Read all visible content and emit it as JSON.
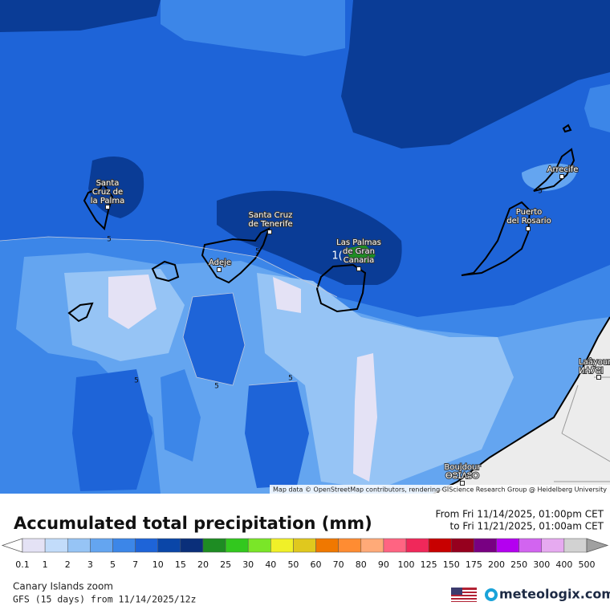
{
  "map": {
    "places": [
      {
        "lines": [
          "Santa",
          "Cruz de",
          "la Palma"
        ]
      },
      {
        "lines": [
          "Santa Cruz",
          "de Tenerife"
        ]
      },
      {
        "lines": [
          "Adeje"
        ]
      },
      {
        "lines": [
          "Las Palmas",
          "de Gran",
          "Canaria"
        ]
      },
      {
        "lines": [
          "Puerto",
          "del Rosario"
        ]
      },
      {
        "lines": [
          "Arrecife"
        ]
      },
      {
        "lines": [
          "Laâyoune",
          "ⵍⵄⵢⵓⵏ"
        ]
      },
      {
        "lines": [
          "Boujdour",
          "ⴱⵓⵊⴷⵓⵔ"
        ]
      }
    ],
    "contour_labels": [
      "5",
      "5",
      "5",
      "5",
      "5",
      "5",
      "1("
    ],
    "attribution": "Map data © OpenStreetMap contributors, rendering GIScience Research Group @ Heidelberg University"
  },
  "legend": {
    "title": "Accumulated total precipitation (mm)",
    "period": [
      "From Fri 11/14/2025, 01:00pm CET",
      "to Fri 11/21/2025, 01:00am CET"
    ],
    "ticks": [
      0.1,
      1,
      2,
      3,
      5,
      7,
      10,
      15,
      20,
      25,
      30,
      40,
      50,
      60,
      70,
      80,
      90,
      100,
      125,
      150,
      175,
      200,
      250,
      300,
      400,
      500
    ],
    "colors": [
      "#e4e2f5",
      "#c2dcfa",
      "#96c4f5",
      "#64a5f0",
      "#3c86e8",
      "#1e64d8",
      "#0a46a8",
      "#0a2f7a",
      "#1e8c23",
      "#32c81e",
      "#7ae628",
      "#f0f028",
      "#e0c81e",
      "#f07800",
      "#ff8c32",
      "#ffaa78",
      "#ff6482",
      "#f0285a",
      "#c80000",
      "#96001e",
      "#780082",
      "#b400f0",
      "#d264f0",
      "#e6aaf0",
      "#d2d2d2"
    ],
    "under_color": "#ffffff",
    "over_color": "#a0a0a0"
  },
  "footer": {
    "region": "Canary Islands zoom",
    "model": "GFS (15 days) from  11/14/2025/12z",
    "brand": "meteologix.com"
  }
}
